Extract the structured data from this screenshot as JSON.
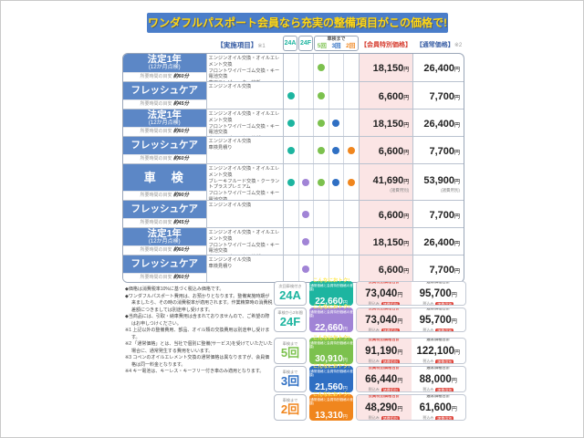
{
  "title": "ワンダフルパスポート会員なら充実の整備項目がこの価格で!",
  "colors": {
    "c24a": "#1db5a0",
    "c24f": "#a184d6",
    "c5": "#7cc14e",
    "c3": "#2f6fc3",
    "c2": "#f0861e"
  },
  "header": {
    "items": "【実施項目】",
    "items_ref": "※1",
    "a": "24A",
    "f": "24F",
    "shaken": "車検まで",
    "counts": [
      "5回",
      "3回",
      "2回"
    ],
    "member": "【会員特別価格】",
    "normal": "【通常価格】",
    "normal_ref": "※2"
  },
  "time_prefix": "所要時間の目安",
  "yen": "円",
  "fee_note": "(諸費用別)",
  "rows": [
    {
      "name": "法定1年",
      "sub": "(12か月点検)",
      "time": "約60分",
      "desc": "エンジンオイル交換・オイルエレメント交換\nフロントワイパーゴム交換・キー電池交換\n専用コンピューター診断",
      "dots": [
        0,
        0,
        1,
        0,
        0
      ],
      "member": "18,150",
      "normal": "26,400",
      "fee": false,
      "tall": false
    },
    {
      "name": "フレッシュケア",
      "sub": "",
      "time": "約45分",
      "desc": "エンジンオイル交換",
      "dots": [
        1,
        0,
        1,
        0,
        0
      ],
      "member": "6,600",
      "normal": "7,700",
      "fee": false,
      "tall": false
    },
    {
      "name": "法定1年",
      "sub": "(12か月点検)",
      "time": "約60分",
      "desc": "エンジンオイル交換・オイルエレメント交換\nフロントワイパーゴム交換・キー電池交換\n専用コンピューター診断",
      "dots": [
        1,
        0,
        1,
        1,
        0
      ],
      "member": "18,150",
      "normal": "26,400",
      "fee": false,
      "tall": false
    },
    {
      "name": "フレッシュケア",
      "sub": "",
      "time": "約60分",
      "desc": "エンジンオイル交換\n車検見積り",
      "dots": [
        1,
        0,
        1,
        1,
        1
      ],
      "member": "6,600",
      "normal": "7,700",
      "fee": false,
      "tall": false
    },
    {
      "name": "車　検",
      "sub": "",
      "time": "約90分",
      "desc": "エンジンオイル交換・オイルエレメント交換\nブレーキフルード交換・クーラントプラスプレミアム\nフロントワイパーゴム交換・キー電池交換\nブレーキメンテナンスキット・専用コンピューター診断",
      "dots": [
        1,
        1,
        1,
        1,
        1
      ],
      "member": "41,690",
      "normal": "53,900",
      "fee": true,
      "tall": true
    },
    {
      "name": "フレッシュケア",
      "sub": "",
      "time": "約45分",
      "desc": "エンジンオイル交換",
      "dots": [
        0,
        1,
        0,
        0,
        0
      ],
      "member": "6,600",
      "normal": "7,700",
      "fee": false,
      "tall": false
    },
    {
      "name": "法定1年",
      "sub": "(12か月点検)",
      "time": "約60分",
      "desc": "エンジンオイル交換・オイルエレメント交換\nフロントワイパーゴム交換・キー電池交換\n専用コンピューター診断",
      "dots": [
        0,
        1,
        0,
        0,
        0
      ],
      "member": "18,150",
      "normal": "26,400",
      "fee": false,
      "tall": false
    },
    {
      "name": "フレッシュケア",
      "sub": "",
      "time": "約60分",
      "desc": "エンジンオイル交換\n車検見積り",
      "dots": [
        0,
        1,
        0,
        0,
        0
      ],
      "member": "6,600",
      "normal": "7,700",
      "fee": false,
      "tall": false
    }
  ],
  "notes": [
    "◆価格は消費税率10%に基づく税込み価格です。",
    "◆ワンダフルパスポート費用は、お預かりとなります。整備実施時期が来ましたら、その時の消費税率が適用されます。作業精算時の消費税差額につきましては別途申し受けます。",
    "◆当商品には、引取・納車費用は含まれておりませんので、ご希望の際はお申しつけください。",
    "※1 上記以外の整備費用、部品、オイル類の交換費用は別途申し受けます。",
    "※2 「通常価格」とは、当社で個別に整備(サービス)を受けていただいた場合に、通常発生する費用をいいます。",
    "※3 コペンのオイルエレメント交換の通常価格は異なりますが、会員価格は同一料金となります。",
    "※4 キー電池は、キーレス・キーフリー付き車のみ適用となります。"
  ],
  "summary": {
    "otoku_title": "こんなにおトク!",
    "otoku_caption": "(通常価格と会員特別価格の差額)",
    "member_label": "会員特別価格合計",
    "normal_label": "通常価格合計",
    "tax": "税込み",
    "fee_badge": "諸費用別",
    "rows": [
      {
        "caption": "次回車検付き",
        "label": "24A",
        "label_color": "c24a",
        "color_key": "c24a",
        "otoku": "22,660",
        "member": "73,040",
        "normal": "95,700"
      },
      {
        "caption": "車検から2年間",
        "label": "24F",
        "label_color": "c24a",
        "color_key": "c24f",
        "otoku": "22,660",
        "member": "73,040",
        "normal": "95,700"
      },
      {
        "caption": "車検まで",
        "label": "5回",
        "label_color": "c5",
        "color_key": "c5",
        "otoku": "30,910",
        "member": "91,190",
        "normal": "122,100"
      },
      {
        "caption": "車検まで",
        "label": "3回",
        "label_color": "c3",
        "color_key": "c3",
        "otoku": "21,560",
        "member": "66,440",
        "normal": "88,000"
      },
      {
        "caption": "車検まで",
        "label": "2回",
        "label_color": "c2",
        "color_key": "c2",
        "otoku": "13,310",
        "member": "48,290",
        "normal": "61,600"
      }
    ]
  }
}
